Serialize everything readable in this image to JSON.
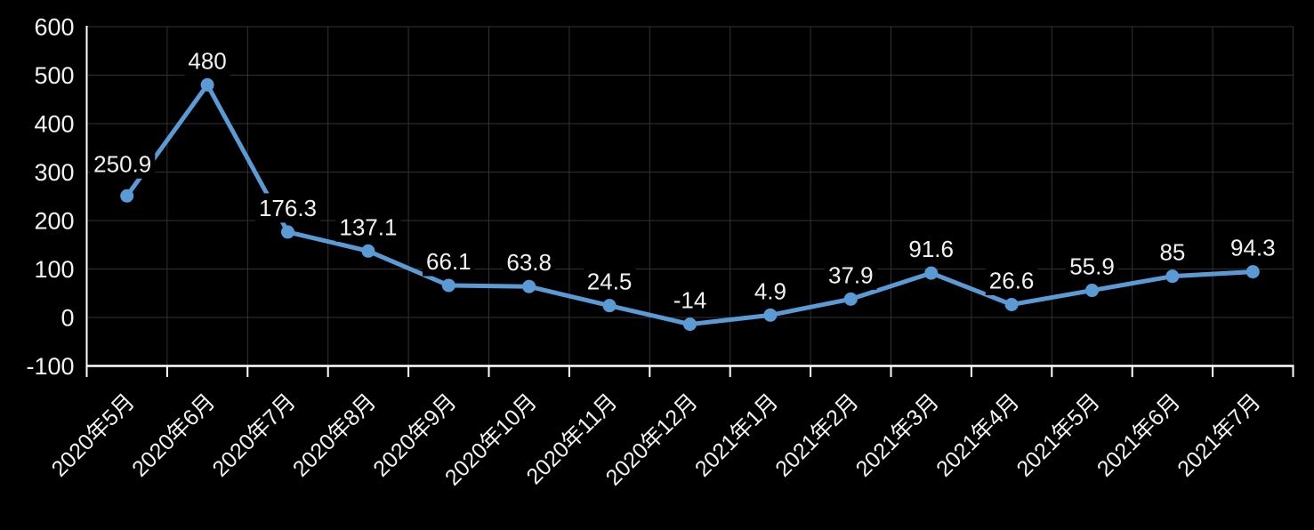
{
  "chart_data": {
    "type": "line",
    "title": "",
    "xlabel": "",
    "ylabel": "",
    "categories": [
      "2020年5月",
      "2020年6月",
      "2020年7月",
      "2020年8月",
      "2020年9月",
      "2020年10月",
      "2020年11月",
      "2020年12月",
      "2021年1月",
      "2021年2月",
      "2021年3月",
      "2021年4月",
      "2021年5月",
      "2021年6月",
      "2021年7月"
    ],
    "series": [
      {
        "name": "series-1",
        "values": [
          250.9,
          480,
          176.3,
          137.1,
          66.1,
          63.8,
          24.5,
          -14,
          4.9,
          37.9,
          91.6,
          26.6,
          55.9,
          85,
          94.3
        ],
        "data_labels": [
          "250.9",
          "480",
          "176.3",
          "137.1",
          "66.1",
          "63.8",
          "24.5",
          "-14",
          "4.9",
          "37.9",
          "91.6",
          "26.6",
          "55.9",
          "85",
          "94.3"
        ]
      }
    ],
    "ylim": [
      -100,
      600
    ],
    "ytick_step": 100,
    "ytick_labels": [
      "600",
      "500",
      "400",
      "300",
      "200",
      "100",
      "0",
      "-100"
    ],
    "grid": true,
    "legend_position": "none",
    "x_label_rotation_deg": 45,
    "colors": {
      "series_line": "#5B9BD5",
      "marker": "#5B9BD5",
      "background": "#000000",
      "gridline": "#323232",
      "axis_line": "#FFFFFF",
      "tick_label": "#F2F2F2",
      "data_label": "#F2F2F2"
    }
  }
}
